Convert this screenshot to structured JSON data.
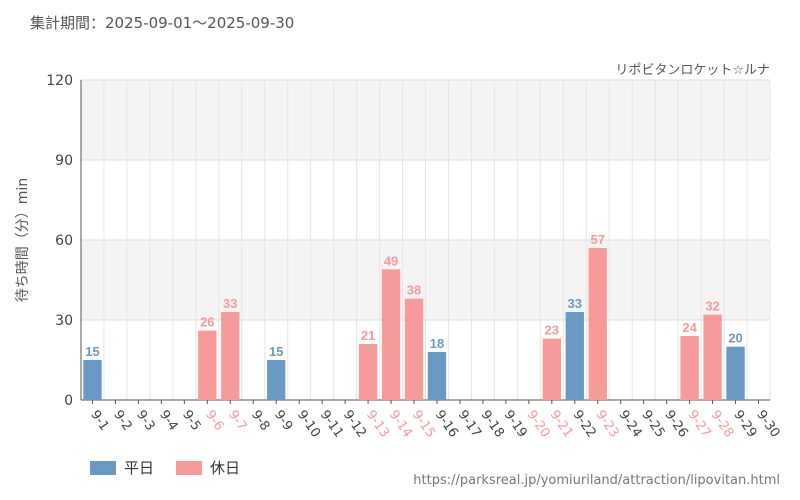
{
  "header": {
    "period": "集計期間：2025-09-01～2025-09-30",
    "attraction": "リポビタンロケット☆ルナ"
  },
  "legend": {
    "weekday": "平日",
    "holiday": "休日"
  },
  "source_url": "https://parksreal.jp/yomiuriland/attraction/lipovitan.html",
  "colors": {
    "weekday": "#6a9ac4",
    "holiday": "#f79a9a"
  },
  "chart_data": {
    "type": "bar",
    "title": "",
    "xlabel": "",
    "ylabel": "待ち時間（分）min",
    "ylim": [
      0,
      120
    ],
    "yticks": [
      0,
      30,
      60,
      90,
      120
    ],
    "categories": [
      "9-1",
      "9-2",
      "9-3",
      "9-4",
      "9-5",
      "9-6",
      "9-7",
      "9-8",
      "9-9",
      "9-10",
      "9-11",
      "9-12",
      "9-13",
      "9-14",
      "9-15",
      "9-16",
      "9-17",
      "9-18",
      "9-19",
      "9-20",
      "9-21",
      "9-22",
      "9-23",
      "9-24",
      "9-25",
      "9-26",
      "9-27",
      "9-28",
      "9-29",
      "9-30"
    ],
    "values": [
      15,
      null,
      null,
      null,
      null,
      26,
      33,
      null,
      15,
      null,
      null,
      null,
      21,
      49,
      38,
      18,
      null,
      null,
      null,
      null,
      23,
      33,
      57,
      null,
      null,
      null,
      24,
      32,
      20,
      null
    ],
    "day_type": [
      "weekday",
      "weekday",
      "weekday",
      "weekday",
      "weekday",
      "holiday",
      "holiday",
      "weekday",
      "weekday",
      "weekday",
      "weekday",
      "weekday",
      "holiday",
      "holiday",
      "holiday",
      "weekday",
      "weekday",
      "weekday",
      "weekday",
      "holiday",
      "holiday",
      "weekday",
      "holiday",
      "weekday",
      "weekday",
      "weekday",
      "holiday",
      "holiday",
      "weekday",
      "weekday"
    ],
    "series": [
      {
        "name": "平日",
        "key": "weekday"
      },
      {
        "name": "休日",
        "key": "holiday"
      }
    ]
  }
}
